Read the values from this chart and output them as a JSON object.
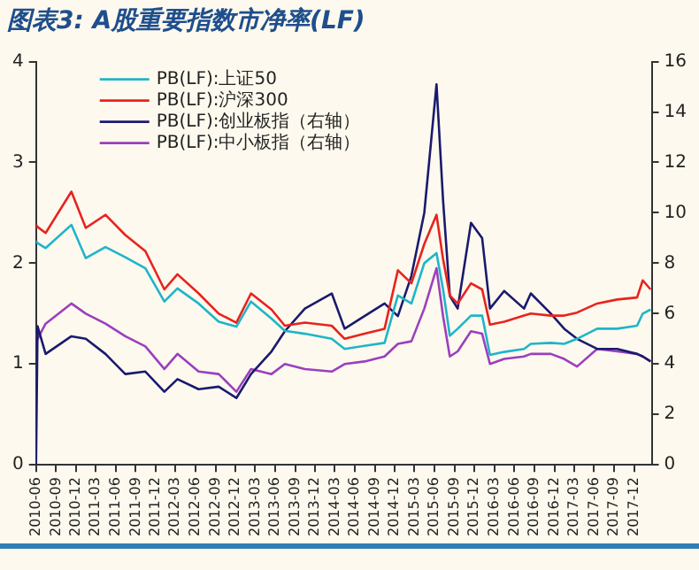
{
  "chart_data": {
    "type": "line",
    "title": "图表3: A股重要指数市净率(LF)",
    "x": [
      "2010-06-01",
      "2010-06-08",
      "2010-07-15",
      "2010-11-10",
      "2011-01-15",
      "2011-04-15",
      "2011-07-15",
      "2011-10-15",
      "2012-01-10",
      "2012-03-10",
      "2012-06-15",
      "2012-09-15",
      "2012-12-05",
      "2013-02-10",
      "2013-05-15",
      "2013-07-15",
      "2013-10-15",
      "2014-02-15",
      "2014-04-15",
      "2014-07-15",
      "2014-10-15",
      "2014-12-15",
      "2015-02-15",
      "2015-04-15",
      "2015-06-10",
      "2015-07-10",
      "2015-08-10",
      "2015-09-15",
      "2015-11-15",
      "2016-01-05",
      "2016-02-10",
      "2016-04-15",
      "2016-07-15",
      "2016-08-15",
      "2016-11-15",
      "2017-01-15",
      "2017-03-15",
      "2017-06-15",
      "2017-09-15",
      "2017-12-15",
      "2018-01-10",
      "2018-02-15"
    ],
    "series": [
      {
        "name": "PB(LF):上证50",
        "color": "#1fb5c8",
        "values": [
          2.22,
          2.2,
          2.15,
          2.38,
          2.05,
          2.16,
          2.06,
          1.95,
          1.62,
          1.75,
          1.6,
          1.42,
          1.37,
          1.62,
          1.45,
          1.33,
          1.3,
          1.25,
          1.15,
          1.18,
          1.21,
          1.68,
          1.6,
          2.0,
          2.1,
          1.74,
          1.28,
          1.35,
          1.48,
          1.48,
          1.09,
          1.12,
          1.15,
          1.2,
          1.21,
          1.2,
          1.25,
          1.35,
          1.35,
          1.38,
          1.5,
          1.54
        ]
      },
      {
        "name": "PB(LF):沪深300",
        "color": "#e8231f",
        "values": [
          2.38,
          2.36,
          2.3,
          2.71,
          2.35,
          2.48,
          2.28,
          2.12,
          1.74,
          1.89,
          1.7,
          1.5,
          1.41,
          1.7,
          1.54,
          1.38,
          1.41,
          1.38,
          1.25,
          1.3,
          1.35,
          1.93,
          1.8,
          2.19,
          2.48,
          2.04,
          1.68,
          1.6,
          1.8,
          1.74,
          1.39,
          1.42,
          1.48,
          1.5,
          1.48,
          1.48,
          1.51,
          1.6,
          1.64,
          1.66,
          1.83,
          1.74
        ]
      },
      {
        "name": "PB(LF):创业板指（右轴）",
        "color": "#1a1a6e",
        "axis": "y2",
        "values": [
          0,
          5.5,
          4.4,
          5.1,
          5.0,
          4.4,
          3.6,
          3.7,
          2.9,
          3.4,
          3.0,
          3.1,
          2.65,
          3.6,
          4.5,
          5.3,
          6.2,
          6.8,
          5.4,
          5.9,
          6.4,
          5.9,
          7.5,
          10.0,
          15.1,
          10.5,
          6.7,
          6.2,
          9.6,
          9.0,
          6.2,
          6.9,
          6.2,
          6.8,
          6.0,
          5.4,
          5.0,
          4.6,
          4.6,
          4.4,
          4.3,
          4.1
        ]
      },
      {
        "name": "PB(LF):中小板指（右轴）",
        "color": "#9b3fbf",
        "axis": "y2",
        "values": [
          5.2,
          5.0,
          5.6,
          6.4,
          6.0,
          5.6,
          5.1,
          4.7,
          3.8,
          4.4,
          3.7,
          3.6,
          2.9,
          3.8,
          3.6,
          4.0,
          3.8,
          3.7,
          4.0,
          4.1,
          4.3,
          4.8,
          4.9,
          6.2,
          7.8,
          5.9,
          4.3,
          4.5,
          5.3,
          5.2,
          4.0,
          4.2,
          4.3,
          4.4,
          4.4,
          4.2,
          3.9,
          4.6,
          4.5,
          4.4,
          4.3,
          4.1
        ]
      }
    ],
    "xlim": [
      "2010-06-01",
      "2018-02-20"
    ],
    "xticks": [
      "2010-06",
      "2010-09",
      "2010-12",
      "2011-03",
      "2011-06",
      "2011-09",
      "2011-12",
      "2012-03",
      "2012-06",
      "2012-09",
      "2012-12",
      "2013-03",
      "2013-06",
      "2013-09",
      "2013-12",
      "2014-03",
      "2014-06",
      "2014-09",
      "2014-12",
      "2015-03",
      "2015-06",
      "2015-09",
      "2015-12",
      "2016-03",
      "2016-06",
      "2016-09",
      "2016-12",
      "2017-03",
      "2017-06",
      "2017-09",
      "2017-12"
    ],
    "ylim": [
      0,
      4
    ],
    "yticks": [
      0,
      1,
      2,
      3,
      4
    ],
    "y2lim": [
      0,
      16
    ],
    "y2ticks": [
      0,
      2,
      4,
      6,
      8,
      10,
      12,
      14,
      16
    ],
    "grid": false,
    "legend": "top left",
    "marker": "none",
    "line_style": "solid"
  }
}
